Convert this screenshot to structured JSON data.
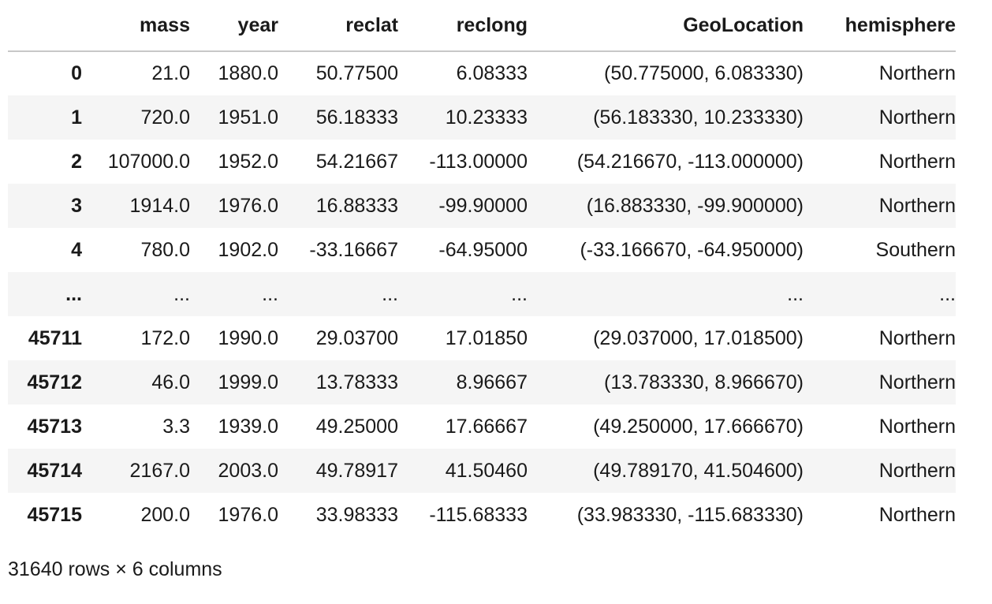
{
  "table": {
    "columns": [
      "mass",
      "year",
      "reclat",
      "reclong",
      "GeoLocation",
      "hemisphere"
    ],
    "rows": [
      {
        "index": "0",
        "cells": [
          "21.0",
          "1880.0",
          "50.77500",
          "6.08333",
          "(50.775000, 6.083330)",
          "Northern"
        ]
      },
      {
        "index": "1",
        "cells": [
          "720.0",
          "1951.0",
          "56.18333",
          "10.23333",
          "(56.183330, 10.233330)",
          "Northern"
        ]
      },
      {
        "index": "2",
        "cells": [
          "107000.0",
          "1952.0",
          "54.21667",
          "-113.00000",
          "(54.216670, -113.000000)",
          "Northern"
        ]
      },
      {
        "index": "3",
        "cells": [
          "1914.0",
          "1976.0",
          "16.88333",
          "-99.90000",
          "(16.883330, -99.900000)",
          "Northern"
        ]
      },
      {
        "index": "4",
        "cells": [
          "780.0",
          "1902.0",
          "-33.16667",
          "-64.95000",
          "(-33.166670, -64.950000)",
          "Southern"
        ]
      },
      {
        "index": "...",
        "cells": [
          "...",
          "...",
          "...",
          "...",
          "...",
          "..."
        ]
      },
      {
        "index": "45711",
        "cells": [
          "172.0",
          "1990.0",
          "29.03700",
          "17.01850",
          "(29.037000, 17.018500)",
          "Northern"
        ]
      },
      {
        "index": "45712",
        "cells": [
          "46.0",
          "1999.0",
          "13.78333",
          "8.96667",
          "(13.783330, 8.966670)",
          "Northern"
        ]
      },
      {
        "index": "45713",
        "cells": [
          "3.3",
          "1939.0",
          "49.25000",
          "17.66667",
          "(49.250000, 17.666670)",
          "Northern"
        ]
      },
      {
        "index": "45714",
        "cells": [
          "2167.0",
          "2003.0",
          "49.78917",
          "41.50460",
          "(49.789170, 41.504600)",
          "Northern"
        ]
      },
      {
        "index": "45715",
        "cells": [
          "200.0",
          "1976.0",
          "33.98333",
          "-115.68333",
          "(33.983330, -115.683330)",
          "Northern"
        ]
      }
    ]
  },
  "footer": {
    "shape_text": "31640 rows × 6 columns"
  }
}
